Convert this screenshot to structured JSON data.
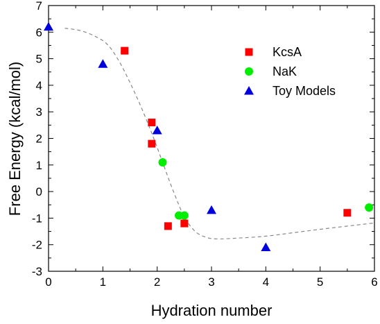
{
  "chart_data": {
    "type": "scatter",
    "title": "",
    "xlabel": "Hydration number",
    "ylabel": "Free Energy (kcal/mol)",
    "xlim": [
      0,
      6
    ],
    "ylim": [
      -3,
      7
    ],
    "xticks": [
      "0",
      "1",
      "2",
      "3",
      "4",
      "5",
      "6"
    ],
    "yticks": [
      "-3",
      "-2",
      "-1",
      "0",
      "1",
      "2",
      "3",
      "4",
      "5",
      "6",
      "7"
    ],
    "grid": false,
    "legend_position": "top-right",
    "series": [
      {
        "name": "KcsA",
        "marker": "square",
        "color": "#ff0000",
        "points": [
          [
            1.4,
            5.3
          ],
          [
            1.9,
            2.6
          ],
          [
            1.9,
            1.8
          ],
          [
            2.2,
            -1.3
          ],
          [
            2.5,
            -1.2
          ],
          [
            5.5,
            -0.8
          ]
        ]
      },
      {
        "name": "NaK",
        "marker": "circle",
        "color": "#00ee00",
        "points": [
          [
            2.1,
            1.1
          ],
          [
            2.4,
            -0.9
          ],
          [
            2.5,
            -0.9
          ],
          [
            5.9,
            -0.6
          ]
        ]
      },
      {
        "name": "Toy Models",
        "marker": "triangle",
        "color": "#0000dd",
        "points": [
          [
            0.0,
            6.2
          ],
          [
            1.0,
            4.8
          ],
          [
            2.0,
            2.3
          ],
          [
            3.0,
            -0.7
          ],
          [
            4.0,
            -2.1
          ]
        ]
      }
    ],
    "fit_curve": {
      "style": "dashed",
      "color": "#888888",
      "points": [
        [
          0.3,
          6.15
        ],
        [
          0.6,
          6.05
        ],
        [
          0.9,
          5.8
        ],
        [
          1.1,
          5.5
        ],
        [
          1.3,
          4.9
        ],
        [
          1.5,
          4.1
        ],
        [
          1.7,
          3.2
        ],
        [
          1.9,
          2.2
        ],
        [
          2.1,
          1.1
        ],
        [
          2.3,
          0.0
        ],
        [
          2.5,
          -0.95
        ],
        [
          2.7,
          -1.5
        ],
        [
          2.9,
          -1.72
        ],
        [
          3.1,
          -1.78
        ],
        [
          3.5,
          -1.75
        ],
        [
          4.0,
          -1.68
        ],
        [
          4.5,
          -1.55
        ],
        [
          5.0,
          -1.42
        ],
        [
          5.5,
          -1.3
        ],
        [
          6.0,
          -1.18
        ]
      ]
    }
  }
}
